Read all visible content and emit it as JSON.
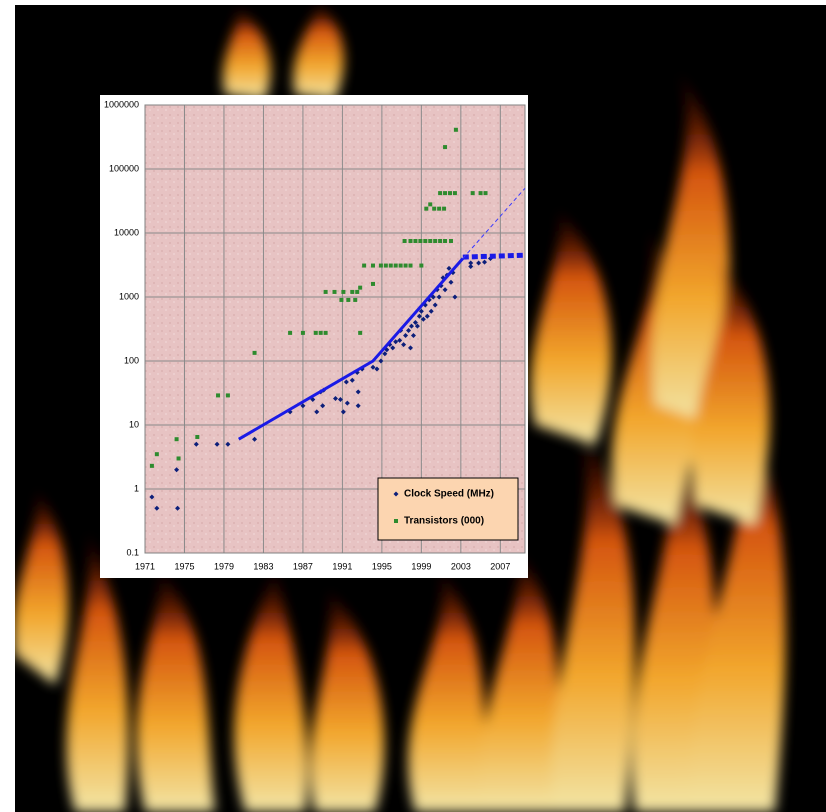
{
  "chart_data": {
    "type": "scatter",
    "log_y": true,
    "grid": true,
    "legend": "lower right",
    "xlim": [
      1971,
      2009.5
    ],
    "ylim": [
      0.1,
      1000000
    ],
    "xticks": [
      1971,
      1975,
      1979,
      1983,
      1987,
      1991,
      1995,
      1999,
      2003,
      2007
    ],
    "yticks": [
      0.1,
      1,
      10,
      100,
      1000,
      10000,
      100000,
      1000000
    ],
    "series": [
      {
        "name": "Clock Speed (MHz)",
        "color": "#0d1f7a",
        "marker": "diamond",
        "x": [
          1971.7,
          1972.2,
          1974.2,
          1974.3,
          1976.2,
          1978.3,
          1979.4,
          1982.1,
          1985.7,
          1987,
          1988,
          1988.4,
          1988.8,
          1989,
          1989.1,
          1990.3,
          1990.8,
          1991.1,
          1991.4,
          1991.5,
          1992,
          1992.5,
          1992.6,
          1992.6,
          1993,
          1994.1,
          1994.5,
          1994.9,
          1995.3,
          1995.5,
          1995.8,
          1996.1,
          1996.4,
          1996.8,
          1996.9,
          1997.2,
          1997.4,
          1997.7,
          1997.9,
          1998,
          1998.2,
          1998.4,
          1998.6,
          1998.8,
          1999,
          1999.2,
          1999.4,
          1999.6,
          1999.8,
          2000,
          2000.2,
          2000.4,
          2000.6,
          2000.8,
          2001,
          2001.2,
          2001.4,
          2001.6,
          2001.8,
          2002,
          2002.2,
          2002.4,
          2004,
          2004,
          2004.8,
          2005.4,
          2006
        ],
        "values": [
          0.75,
          0.5,
          2,
          0.5,
          5,
          5,
          5,
          6,
          16,
          20,
          25,
          16,
          33,
          20,
          35,
          26,
          25,
          16,
          47,
          22,
          50,
          66,
          33,
          20,
          75,
          80,
          75,
          100,
          130,
          150,
          180,
          160,
          200,
          210,
          300,
          180,
          250,
          300,
          160,
          350,
          250,
          400,
          350,
          500,
          600,
          450,
          750,
          500,
          900,
          600,
          1000,
          750,
          1300,
          1000,
          1500,
          2000,
          1300,
          2200,
          2800,
          1700,
          2400,
          1000,
          3000,
          3400,
          3400,
          3500,
          4000
        ]
      },
      {
        "name": "Transistors (000)",
        "color": "#2e8b2e",
        "marker": "square",
        "x": [
          1971.7,
          1972.2,
          1974.2,
          1974.4,
          1976.3,
          1978.4,
          1979.4,
          1982.1,
          1985.7,
          1987,
          1988.3,
          1988.8,
          1989.3,
          1989.3,
          1990.2,
          1990.9,
          1991.1,
          1991.6,
          1992,
          1992.3,
          1992.5,
          1992.8,
          1992.8,
          1993.2,
          1994.1,
          1994.1,
          1994.9,
          1995.4,
          1995.9,
          1996.4,
          1996.9,
          1997.4,
          1997.9,
          1999,
          1997.3,
          1997.9,
          1998.4,
          1998.9,
          1999.4,
          1999.9,
          2000.4,
          2000.9,
          2001.4,
          2002,
          1999.5,
          1999.9,
          2000.3,
          2000.8,
          2001.3,
          2000.9,
          2001.4,
          2001.9,
          2002.4,
          2001.4,
          2002.5,
          2004.2,
          2005,
          2005.5
        ],
        "values": [
          2.3,
          3.5,
          6,
          3,
          6.5,
          29,
          29,
          134,
          275,
          275,
          275,
          275,
          275,
          1200,
          1200,
          900,
          1200,
          900,
          1200,
          900,
          1200,
          1400,
          275,
          3100,
          1600,
          3100,
          3100,
          3100,
          3100,
          3100,
          3100,
          3100,
          3100,
          3100,
          7500,
          7500,
          7500,
          7500,
          7500,
          7500,
          7500,
          7500,
          7500,
          7500,
          24000,
          28000,
          24000,
          24000,
          24000,
          42000,
          42000,
          42000,
          42000,
          220000,
          410000,
          42000,
          42000,
          42000
        ]
      }
    ],
    "trend_lines": [
      {
        "color": "#1a1ae6",
        "style": "solid",
        "width": 3,
        "x": [
          1980.5,
          1994.1,
          2003.2
        ],
        "values": [
          6,
          100,
          4000
        ]
      },
      {
        "color": "#1a1ae6",
        "style": "dashed-thick",
        "width": 5,
        "x": [
          2003.2,
          2009.5
        ],
        "values": [
          4200,
          4500
        ]
      },
      {
        "color": "#3a3aff",
        "style": "dashed-thin",
        "width": 1,
        "x": [
          2003.2,
          2009.5
        ],
        "values": [
          4000,
          50000
        ]
      }
    ]
  }
}
